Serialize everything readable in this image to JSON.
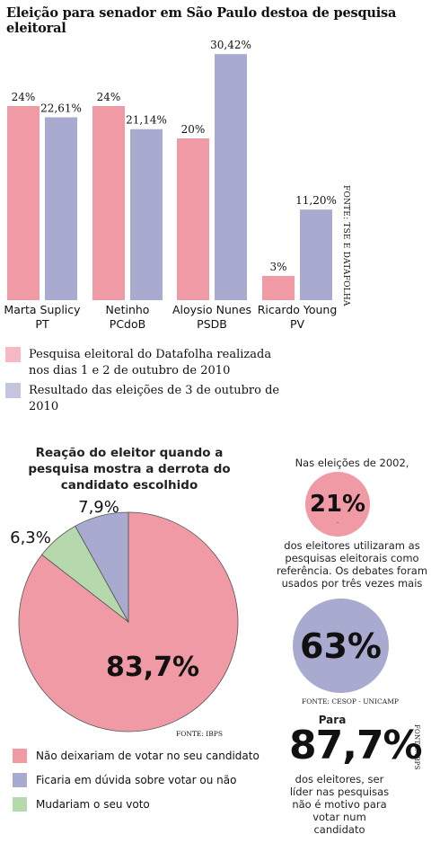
{
  "title": "Eleição para senador em São Paulo destoa de pesquisa eleitoral",
  "colors": {
    "pink": "#f09aa5",
    "blue": "#a9aad0",
    "green": "#b5d8ad",
    "pink_light": "#f6b9c1",
    "blue_light": "#c3c4e0"
  },
  "chart_data": [
    {
      "type": "bar",
      "categories": [
        "Marta Suplicy\nPT",
        "Netinho\nPCdoB",
        "Aloysio Nunes\nPSDB",
        "Ricardo Young\nPV"
      ],
      "category_names": [
        "Marta Suplicy",
        "Netinho",
        "Aloysio Nunes",
        "Ricardo Young"
      ],
      "category_parties": [
        "PT",
        "PCdoB",
        "PSDB",
        "PV"
      ],
      "series": [
        {
          "name": "Pesquisa eleitoral do Datafolha realizada nos dias 1 e 2 de outubro de 2010",
          "values": [
            24,
            24,
            20,
            3
          ],
          "labels": [
            "24%",
            "24%",
            "20%",
            "3%"
          ],
          "color": "#f09aa5"
        },
        {
          "name": "Resultado das eleições de 3 de outubro de 2010",
          "values": [
            22.61,
            21.14,
            30.42,
            11.2
          ],
          "labels": [
            "22,61%",
            "21,14%",
            "30,42%",
            "11,20%"
          ],
          "color": "#a9aad0"
        }
      ],
      "ylim": [
        0,
        31
      ],
      "source": "FONTE: TSE E DATAFOLHA"
    },
    {
      "type": "pie",
      "title": "Reação do eleitor quando a pesquisa mostra a derrota do candidato escolhido",
      "slices": [
        {
          "label": "Não deixariam de votar no seu candidato",
          "value": 83.7,
          "text": "83,7%",
          "color": "#f09aa5"
        },
        {
          "label": "Mudariam o seu voto",
          "value": 6.3,
          "text": "6,3%",
          "color": "#b5d8ad"
        },
        {
          "label": "Ficaria em dúvida sobre votar ou não",
          "value": 7.9,
          "text": "7,9%",
          "color": "#a9aad0"
        }
      ],
      "legend_order": [
        "Não deixariam de votar no seu candidato",
        "Ficaria em dúvida sobre votar ou não",
        "Mudariam o seu voto"
      ],
      "source": "FONTE: IBPS"
    }
  ],
  "right_panel": {
    "intro": "Nas eleições de 2002,",
    "stat1": "21%",
    "stat1_dot": ".",
    "text1": "dos eleitores utilizaram as pesquisas eleitorais como referência. Os debates foram usados por três vezes mais",
    "stat2": "63%",
    "source1": "FONTE: CESOP - UNICAMP",
    "para": "Para",
    "stat3": "87,7%",
    "text2": "dos eleitores, ser líder nas pesquisas não é motivo para votar num candidato",
    "source2": "FONTE: IBPS"
  }
}
